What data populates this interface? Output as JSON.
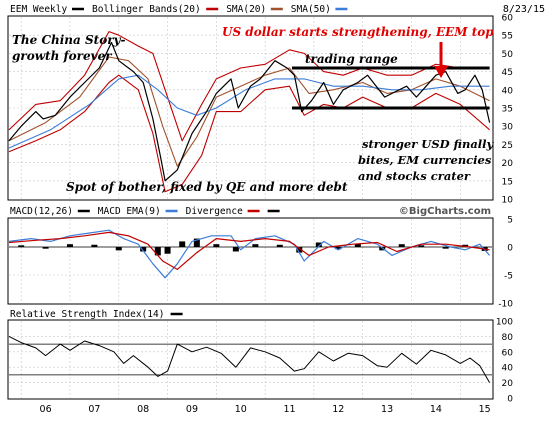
{
  "chart_data": {
    "type": "line",
    "date_label": "8/23/15",
    "watermark": "©BigCharts.com",
    "x_ticks": [
      "06",
      "07",
      "08",
      "09",
      "10",
      "11",
      "12",
      "13",
      "14",
      "15"
    ],
    "main": {
      "legend": [
        {
          "label": "EEM Weekly",
          "color": "#000000"
        },
        {
          "label": "Bollinger Bands(20)",
          "color": "#c00000"
        },
        {
          "label": "SMA(20)",
          "color": "#a0522d"
        },
        {
          "label": "SMA(50)",
          "color": "#3b7dd8"
        }
      ],
      "y_ticks": [
        10,
        15,
        20,
        25,
        30,
        35,
        40,
        45,
        50,
        55,
        60
      ],
      "ylim": [
        10,
        60
      ],
      "series": [
        {
          "name": "EEM Weekly",
          "color": "#000000",
          "x": [
            2005.75,
            2006.0,
            2006.3,
            2006.45,
            2006.7,
            2007.0,
            2007.3,
            2007.6,
            2007.85,
            2008.0,
            2008.3,
            2008.5,
            2008.7,
            2008.85,
            2008.95,
            2009.2,
            2009.5,
            2009.8,
            2010.0,
            2010.3,
            2010.45,
            2010.7,
            2010.9,
            2011.2,
            2011.45,
            2011.6,
            2011.75,
            2011.95,
            2012.2,
            2012.4,
            2012.6,
            2012.9,
            2013.1,
            2013.45,
            2013.6,
            2013.9,
            2014.1,
            2014.5,
            2014.7,
            2014.95,
            2015.1,
            2015.3,
            2015.45,
            2015.6
          ],
          "y": [
            26,
            30,
            34,
            32,
            33,
            38,
            42,
            46,
            53,
            48,
            45,
            42,
            32,
            22,
            15,
            18,
            28,
            34,
            39,
            43,
            35,
            41,
            43,
            48,
            46,
            44,
            34,
            37,
            42,
            36,
            40,
            42,
            44,
            38,
            39,
            41,
            38,
            44,
            45,
            39,
            40,
            44,
            40,
            31
          ]
        },
        {
          "name": "Bollinger Bands(20) upper",
          "color": "#c00000",
          "x": [
            2005.75,
            2006.3,
            2006.8,
            2007.3,
            2007.8,
            2008.0,
            2008.4,
            2008.7,
            2008.95,
            2009.3,
            2009.7,
            2010.0,
            2010.5,
            2011.0,
            2011.5,
            2011.8,
            2012.2,
            2012.6,
            2013.0,
            2013.5,
            2014.0,
            2014.5,
            2015.0,
            2015.6
          ],
          "y": [
            29,
            36,
            37,
            44,
            56,
            55,
            52,
            50,
            40,
            26,
            36,
            43,
            46,
            47,
            51,
            50,
            45,
            44,
            46,
            44,
            44,
            47,
            46,
            46
          ]
        },
        {
          "name": "Bollinger Bands(20) lower",
          "color": "#c00000",
          "x": [
            2005.75,
            2006.3,
            2006.8,
            2007.3,
            2007.8,
            2008.0,
            2008.4,
            2008.7,
            2008.95,
            2009.3,
            2009.7,
            2010.0,
            2010.5,
            2011.0,
            2011.5,
            2011.8,
            2012.2,
            2012.6,
            2013.0,
            2013.5,
            2014.0,
            2014.5,
            2015.0,
            2015.6
          ],
          "y": [
            23,
            26,
            29,
            34,
            42,
            44,
            40,
            28,
            12,
            14,
            22,
            34,
            34,
            40,
            41,
            33,
            36,
            35,
            38,
            35,
            35,
            39,
            36,
            29
          ]
        },
        {
          "name": "SMA(20)",
          "color": "#a0522d",
          "x": [
            2005.75,
            2006.5,
            2007.2,
            2007.8,
            2008.2,
            2008.6,
            2008.9,
            2009.2,
            2009.6,
            2010.0,
            2010.5,
            2011.0,
            2011.5,
            2011.9,
            2012.4,
            2013.0,
            2013.5,
            2014.0,
            2014.5,
            2015.0,
            2015.6
          ],
          "y": [
            26,
            31,
            38,
            49,
            48,
            43,
            30,
            19,
            27,
            38,
            41,
            44,
            46,
            39,
            40,
            42,
            39,
            40,
            43,
            41,
            37
          ]
        },
        {
          "name": "SMA(50)",
          "color": "#3b7dd8",
          "x": [
            2005.75,
            2006.6,
            2007.4,
            2008.0,
            2008.4,
            2008.8,
            2009.2,
            2009.6,
            2010.0,
            2010.6,
            2011.2,
            2011.8,
            2012.4,
            2013.0,
            2013.6,
            2014.2,
            2014.8,
            2015.6
          ],
          "y": [
            24,
            29,
            36,
            43,
            44,
            40,
            35,
            33,
            35,
            40,
            43,
            43,
            41,
            41,
            40,
            40,
            41,
            41
          ]
        }
      ],
      "reference_lines": [
        {
          "label": "trading range top",
          "value": 46,
          "x_from": 2011.55,
          "x_to": 2015.6,
          "color": "#000000"
        },
        {
          "label": "trading range bottom",
          "value": 35,
          "x_from": 2011.55,
          "x_to": 2015.6,
          "color": "#000000"
        }
      ],
      "annotations": [
        {
          "text": "The China Story-",
          "color": "#000000"
        },
        {
          "text": "growth forever",
          "color": "#000000"
        },
        {
          "text": "US dollar starts strengthening, EEM top",
          "color": "#e00000"
        },
        {
          "text": "trading range",
          "color": "#000000"
        },
        {
          "text": "stronger USD finally",
          "color": "#000000"
        },
        {
          "text": "bites, EM currencies",
          "color": "#000000"
        },
        {
          "text": "and stocks crater",
          "color": "#000000"
        },
        {
          "text": "Spot of bother, fixed by QE and more debt",
          "color": "#000000"
        }
      ]
    },
    "macd": {
      "legend": [
        {
          "label": "MACD(12,26)",
          "color": "#000000"
        },
        {
          "label": "MACD EMA(9)",
          "color": "#3b7dd8"
        },
        {
          "label": "Divergence",
          "color": "#c00000"
        },
        {
          "label": "",
          "color": "#000000"
        }
      ],
      "y_ticks": [
        5,
        0,
        -5,
        -10
      ],
      "ylim": [
        -10,
        5
      ],
      "series": [
        {
          "name": "MACD(12,26)",
          "color": "#3b7dd8",
          "x": [
            2005.75,
            2006.2,
            2006.6,
            2007.0,
            2007.4,
            2007.8,
            2008.1,
            2008.4,
            2008.7,
            2008.95,
            2009.2,
            2009.5,
            2009.9,
            2010.3,
            2010.5,
            2010.8,
            2011.2,
            2011.6,
            2011.8,
            2012.2,
            2012.5,
            2012.9,
            2013.3,
            2013.6,
            2014.0,
            2014.4,
            2014.8,
            2015.1,
            2015.4,
            2015.6
          ],
          "y": [
            1,
            1.5,
            1,
            2,
            2.5,
            3,
            1.5,
            0.5,
            -3,
            -5.5,
            -3,
            1,
            2,
            2,
            -0.5,
            1.5,
            2,
            0.5,
            -2.5,
            1,
            -0.5,
            1.5,
            0.5,
            -1.5,
            0,
            1,
            0,
            -0.5,
            0.5,
            -1.5
          ]
        },
        {
          "name": "MACD EMA(9)",
          "color": "#c00000",
          "x": [
            2005.75,
            2006.3,
            2006.8,
            2007.3,
            2007.8,
            2008.2,
            2008.6,
            2008.9,
            2009.2,
            2009.6,
            2010.0,
            2010.5,
            2011.0,
            2011.5,
            2011.9,
            2012.3,
            2012.8,
            2013.3,
            2013.7,
            2014.2,
            2014.7,
            2015.2,
            2015.6
          ],
          "y": [
            0.8,
            1.2,
            1.5,
            2,
            2.6,
            2,
            0.5,
            -2.5,
            -4,
            -1,
            1.5,
            1,
            1.5,
            1,
            -1.5,
            0,
            0.5,
            0.8,
            -0.8,
            0.5,
            0.5,
            0,
            -0.5
          ]
        }
      ],
      "divergence_bars": [
        {
          "x": 2006.0,
          "value": 0.3
        },
        {
          "x": 2006.5,
          "value": -0.3
        },
        {
          "x": 2007.0,
          "value": 0.5
        },
        {
          "x": 2007.5,
          "value": 0.4
        },
        {
          "x": 2008.0,
          "value": -0.6
        },
        {
          "x": 2008.5,
          "value": -0.8
        },
        {
          "x": 2008.8,
          "value": -1.5
        },
        {
          "x": 2009.0,
          "value": -1.2
        },
        {
          "x": 2009.3,
          "value": 1.0
        },
        {
          "x": 2009.6,
          "value": 1.5
        },
        {
          "x": 2010.0,
          "value": 0.5
        },
        {
          "x": 2010.4,
          "value": -0.8
        },
        {
          "x": 2010.8,
          "value": 0.5
        },
        {
          "x": 2011.3,
          "value": 0.4
        },
        {
          "x": 2011.7,
          "value": -1.0
        },
        {
          "x": 2012.1,
          "value": 0.8
        },
        {
          "x": 2012.5,
          "value": -0.4
        },
        {
          "x": 2012.9,
          "value": 0.6
        },
        {
          "x": 2013.4,
          "value": -0.6
        },
        {
          "x": 2013.8,
          "value": 0.5
        },
        {
          "x": 2014.2,
          "value": 0.3
        },
        {
          "x": 2014.7,
          "value": -0.3
        },
        {
          "x": 2015.1,
          "value": 0.4
        },
        {
          "x": 2015.5,
          "value": -0.7
        }
      ]
    },
    "rsi": {
      "legend": [
        {
          "label": "Relative Strength Index(14)",
          "color": "#000000"
        }
      ],
      "y_ticks": [
        100,
        80,
        60,
        40,
        20,
        0
      ],
      "ylim": [
        0,
        100
      ],
      "reference_lines": [
        {
          "value": 70
        },
        {
          "value": 30
        }
      ],
      "series": [
        {
          "name": "Relative Strength Index(14)",
          "color": "#000000",
          "x": [
            2005.75,
            2006.0,
            2006.3,
            2006.5,
            2006.8,
            2007.0,
            2007.3,
            2007.6,
            2007.9,
            2008.1,
            2008.3,
            2008.6,
            2008.8,
            2009.0,
            2009.2,
            2009.5,
            2009.8,
            2010.1,
            2010.4,
            2010.7,
            2011.0,
            2011.3,
            2011.6,
            2011.8,
            2012.1,
            2012.4,
            2012.7,
            2013.0,
            2013.3,
            2013.5,
            2013.8,
            2014.1,
            2014.4,
            2014.7,
            2015.0,
            2015.2,
            2015.4,
            2015.6
          ],
          "y": [
            80,
            72,
            65,
            55,
            70,
            62,
            74,
            68,
            60,
            45,
            55,
            40,
            28,
            35,
            70,
            60,
            66,
            58,
            40,
            65,
            60,
            52,
            35,
            38,
            60,
            48,
            58,
            55,
            42,
            40,
            58,
            44,
            62,
            56,
            45,
            52,
            42,
            20
          ]
        }
      ]
    }
  }
}
